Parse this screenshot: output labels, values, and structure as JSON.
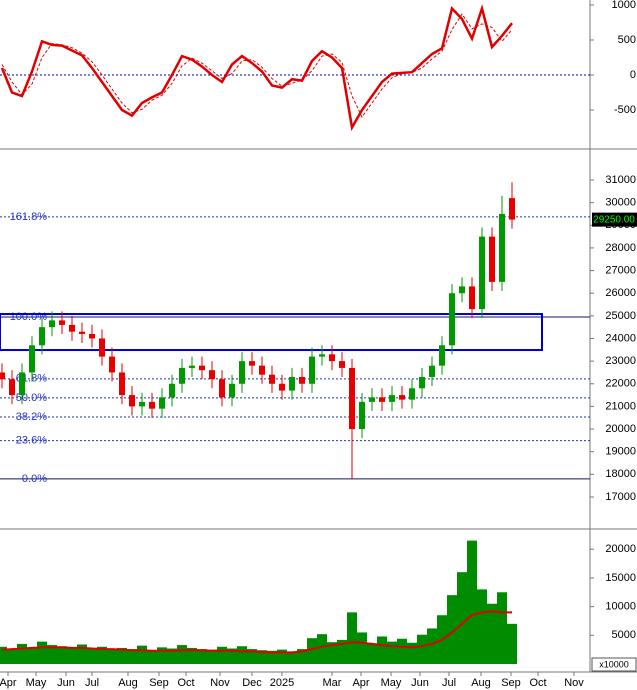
{
  "chart_data": [
    {
      "type": "line",
      "x": [
        0,
        1,
        2,
        3,
        4,
        5,
        6,
        7,
        8,
        9,
        10,
        11,
        12,
        13,
        14,
        15,
        16,
        17,
        18,
        19,
        20,
        21,
        22,
        23,
        24,
        25,
        26,
        27,
        28,
        29,
        30,
        31,
        32,
        33,
        34,
        35,
        36,
        37,
        38,
        39,
        40,
        41,
        42,
        43,
        44,
        45,
        46,
        47,
        48,
        49,
        50,
        51
      ],
      "xlim": [
        -0.2,
        58.8
      ],
      "series": [
        {
          "color": "#e00000",
          "style": "solid",
          "values": [
            100,
            -250,
            -300,
            50,
            480,
            430,
            420,
            350,
            280,
            100,
            -100,
            -300,
            -500,
            -580,
            -400,
            -320,
            -250,
            0,
            270,
            220,
            120,
            0,
            -100,
            150,
            270,
            170,
            50,
            -150,
            -180,
            -60,
            -80,
            200,
            340,
            250,
            100,
            -750,
            -500,
            -300,
            -100,
            20,
            30,
            40,
            170,
            300,
            380,
            950,
            800,
            520,
            950,
            400,
            560,
            740
          ]
        },
        {
          "color": "#e00000",
          "style": "dashed",
          "values": [
            150,
            -100,
            -280,
            -130,
            250,
            450,
            430,
            390,
            310,
            190,
            0,
            -200,
            -400,
            -540,
            -490,
            -360,
            -290,
            -120,
            130,
            240,
            170,
            60,
            -50,
            20,
            200,
            220,
            110,
            -50,
            -160,
            -120,
            -70,
            60,
            270,
            300,
            180,
            -300,
            -600,
            -400,
            -200,
            -40,
            25,
            35,
            100,
            230,
            340,
            650,
            870,
            660,
            730,
            680,
            480,
            650
          ]
        }
      ],
      "ref_line": 0,
      "ylim": [
        -1043,
        1071
      ],
      "yticks": [
        -500,
        0,
        500,
        1000
      ]
    },
    {
      "type": "candlestick",
      "x": [
        0,
        1,
        2,
        3,
        4,
        5,
        6,
        7,
        8,
        9,
        10,
        11,
        12,
        13,
        14,
        15,
        16,
        17,
        18,
        19,
        20,
        21,
        22,
        23,
        24,
        25,
        26,
        27,
        28,
        29,
        30,
        31,
        32,
        33,
        34,
        35,
        36,
        37,
        38,
        39,
        40,
        41,
        42,
        43,
        44,
        45,
        46,
        47,
        48,
        49,
        50,
        51
      ],
      "xlim": [
        -0.2,
        58.8
      ],
      "open": [
        22500,
        22200,
        21500,
        22500,
        23700,
        24500,
        24800,
        24600,
        24300,
        24200,
        24000,
        23200,
        22500,
        21500,
        21000,
        21200,
        20900,
        21400,
        22000,
        22700,
        22800,
        22600,
        22200,
        21400,
        22000,
        23000,
        22800,
        22400,
        22000,
        21700,
        22300,
        22000,
        23200,
        23300,
        23000,
        22700,
        20000,
        21200,
        21400,
        21200,
        21500,
        21300,
        21800,
        22300,
        22800,
        23700,
        26000,
        26300,
        25300,
        28500,
        26500,
        30200
      ],
      "high": [
        22900,
        22600,
        22900,
        24100,
        24900,
        25200,
        25200,
        25000,
        24700,
        24600,
        24400,
        23600,
        22900,
        21900,
        21600,
        21600,
        21800,
        22400,
        23100,
        23200,
        23200,
        23000,
        22600,
        22400,
        23400,
        23400,
        23200,
        22800,
        22400,
        22700,
        22700,
        23600,
        23700,
        23700,
        23400,
        23100,
        21600,
        21800,
        21800,
        21900,
        21900,
        22200,
        22700,
        23200,
        24100,
        26400,
        26700,
        26700,
        28900,
        28900,
        30300,
        30900
      ],
      "low": [
        21800,
        21100,
        21100,
        22100,
        23300,
        24100,
        24200,
        23900,
        23800,
        23600,
        22800,
        22100,
        21100,
        20600,
        20600,
        20500,
        20500,
        21000,
        21600,
        22300,
        22200,
        21800,
        21000,
        21000,
        21600,
        22400,
        22000,
        21600,
        21300,
        21300,
        21600,
        21600,
        22800,
        22600,
        22300,
        17800,
        19600,
        20800,
        20800,
        20800,
        20900,
        20900,
        21400,
        21900,
        22400,
        23300,
        25600,
        24900,
        24900,
        26100,
        26100,
        28850
      ],
      "close": [
        22200,
        21500,
        22500,
        23700,
        24500,
        24800,
        24600,
        24300,
        24200,
        24000,
        23200,
        22500,
        21500,
        21000,
        21200,
        20900,
        21400,
        22000,
        22700,
        22800,
        22600,
        22200,
        21400,
        22000,
        23000,
        22800,
        22400,
        22000,
        21700,
        22300,
        22000,
        23200,
        23300,
        23000,
        22700,
        20000,
        21200,
        21400,
        21200,
        21500,
        21300,
        21800,
        22300,
        22800,
        23700,
        26000,
        26300,
        25300,
        28500,
        26500,
        29500,
        29250
      ],
      "up_color": "#009900",
      "down_color": "#e60000",
      "fib_levels": [
        {
          "label": "161.8%",
          "value": 29369,
          "style": "dashed"
        },
        {
          "label": "100.0%",
          "value": 24950,
          "style": "solid"
        },
        {
          "label": "61.8%",
          "value": 22219,
          "style": "dashed"
        },
        {
          "label": "50.0%",
          "value": 21375,
          "style": "dashed"
        },
        {
          "label": "38.2%",
          "value": 20531,
          "style": "dashed"
        },
        {
          "label": "23.6%",
          "value": 19487,
          "style": "dashed"
        },
        {
          "label": "0.0%",
          "value": 17800,
          "style": "solid"
        }
      ],
      "box": [
        23490,
        25080
      ],
      "last_price": {
        "value": 29250,
        "label": "29250.00"
      },
      "ylim": [
        15630,
        32325
      ],
      "yticks": [
        17000,
        18000,
        19000,
        20000,
        21000,
        22000,
        23000,
        24000,
        25000,
        26000,
        27000,
        28000,
        29000,
        30000,
        31000
      ]
    },
    {
      "type": "bar",
      "x": [
        0,
        1,
        2,
        3,
        4,
        5,
        6,
        7,
        8,
        9,
        10,
        11,
        12,
        13,
        14,
        15,
        16,
        17,
        18,
        19,
        20,
        21,
        22,
        23,
        24,
        25,
        26,
        27,
        28,
        29,
        30,
        31,
        32,
        33,
        34,
        35,
        36,
        37,
        38,
        39,
        40,
        41,
        42,
        43,
        44,
        45,
        46,
        47,
        48,
        49,
        50,
        51
      ],
      "xlim": [
        -0.2,
        58.8
      ],
      "values": [
        3000,
        2600,
        3500,
        2800,
        3900,
        3300,
        3100,
        2900,
        3400,
        2700,
        3000,
        2500,
        2800,
        2600,
        3200,
        2400,
        2900,
        2700,
        3300,
        2800,
        2600,
        2500,
        3000,
        2700,
        3100,
        2600,
        2400,
        2300,
        2500,
        2200,
        2600,
        4500,
        5200,
        3800,
        4200,
        9000,
        5500,
        3600,
        4800,
        3900,
        4400,
        3700,
        5100,
        6200,
        8500,
        12000,
        16000,
        21500,
        13000,
        10500,
        12500,
        7000
      ],
      "color": "#008c00",
      "ma": [
        2500,
        2600,
        2700,
        2800,
        2900,
        2900,
        2900,
        2800,
        2800,
        2700,
        2600,
        2600,
        2500,
        2400,
        2400,
        2300,
        2300,
        2300,
        2400,
        2400,
        2400,
        2300,
        2300,
        2300,
        2200,
        2200,
        2100,
        2000,
        2000,
        2000,
        2200,
        2600,
        3000,
        3300,
        3500,
        3800,
        3700,
        3500,
        3300,
        3100,
        3000,
        2900,
        3100,
        3500,
        4200,
        5500,
        7000,
        8500,
        9000,
        9200,
        9000,
        9000
      ],
      "ma_color": "#e00000",
      "unit_label": "x10000",
      "ylim": [
        0,
        23350
      ],
      "yticks": [
        5000,
        10000,
        15000,
        20000
      ],
      "xticks": [
        {
          "value": 0.6,
          "label": "Apr"
        },
        {
          "value": 3.4,
          "label": "May"
        },
        {
          "value": 6.4,
          "label": "Jun"
        },
        {
          "value": 9.0,
          "label": "Jul"
        },
        {
          "value": 12.6,
          "label": "Aug"
        },
        {
          "value": 15.7,
          "label": "Sep"
        },
        {
          "value": 18.4,
          "label": "Oct"
        },
        {
          "value": 21.8,
          "label": "Nov"
        },
        {
          "value": 25.0,
          "label": "Dec"
        },
        {
          "value": 28.0,
          "label": "2025"
        },
        {
          "value": 33.0,
          "label": "Mar"
        },
        {
          "value": 35.9,
          "label": "Apr"
        },
        {
          "value": 38.9,
          "label": "May"
        },
        {
          "value": 41.8,
          "label": "Jun"
        },
        {
          "value": 44.7,
          "label": "Jul"
        },
        {
          "value": 47.9,
          "label": "Aug"
        },
        {
          "value": 50.9,
          "label": "Sep"
        },
        {
          "value": 53.6,
          "label": "Oct"
        },
        {
          "value": 57.2,
          "label": "Nov"
        }
      ]
    }
  ]
}
